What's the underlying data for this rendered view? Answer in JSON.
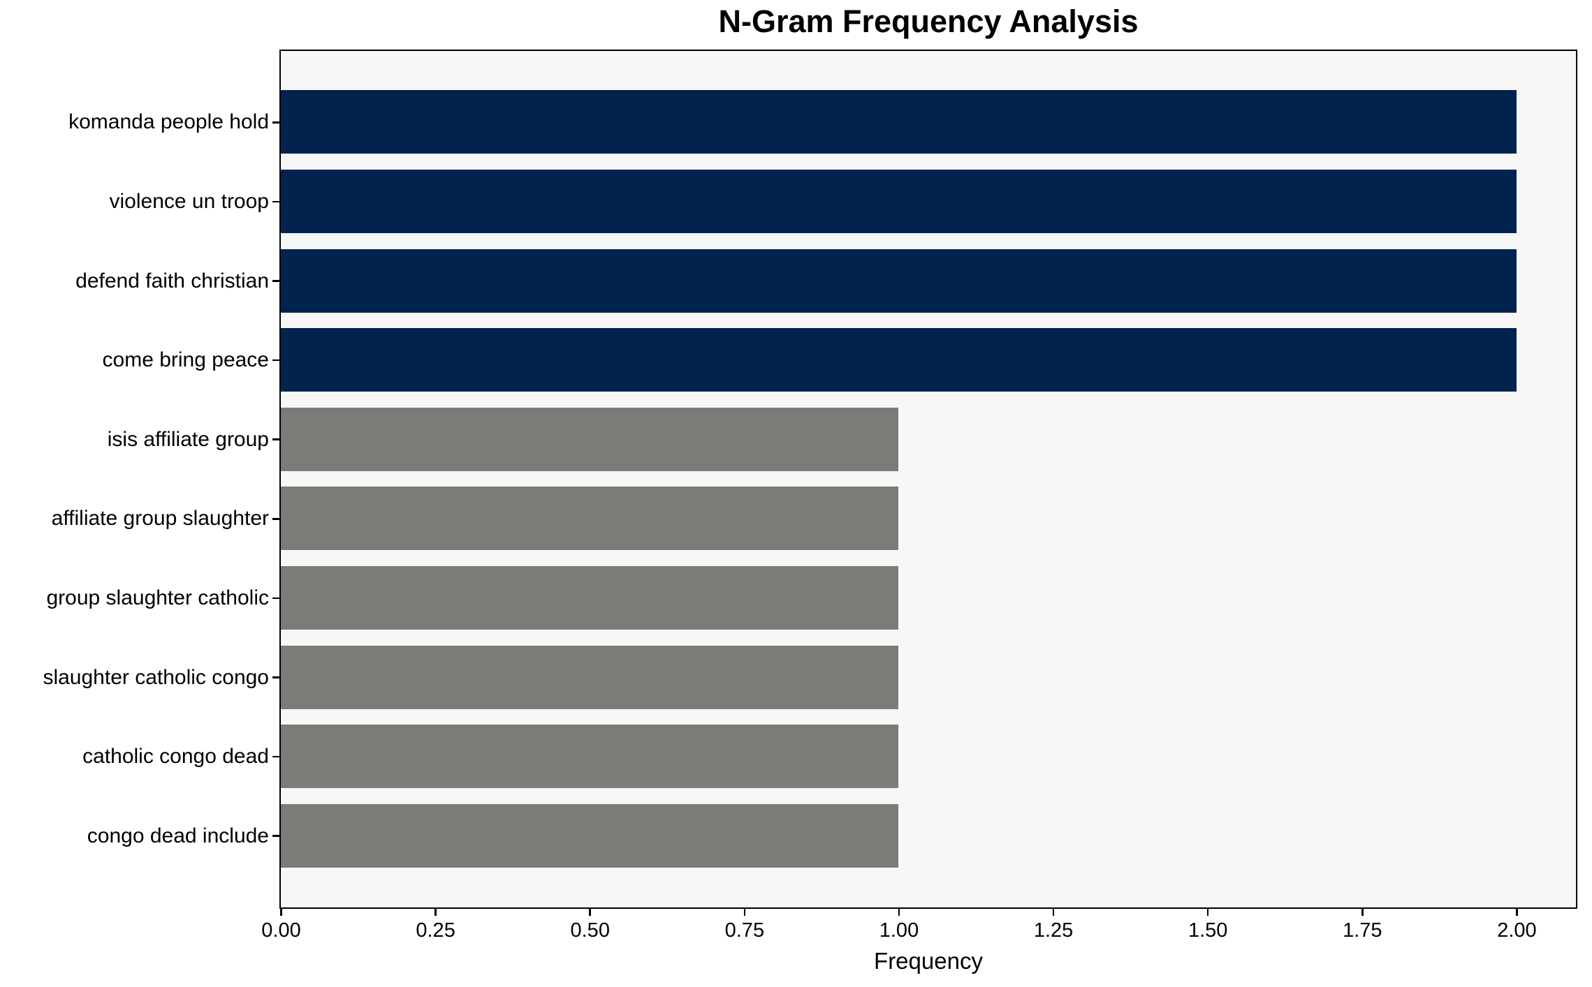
{
  "chart_data": {
    "type": "bar",
    "orientation": "horizontal",
    "title": "N-Gram Frequency Analysis",
    "xlabel": "Frequency",
    "ylabel": "",
    "categories": [
      "komanda people hold",
      "violence un troop",
      "defend faith christian",
      "come bring peace",
      "isis affiliate group",
      "affiliate group slaughter",
      "group slaughter catholic",
      "slaughter catholic congo",
      "catholic congo dead",
      "congo dead include"
    ],
    "values": [
      2,
      2,
      2,
      2,
      1,
      1,
      1,
      1,
      1,
      1
    ],
    "bar_colors": [
      "#02234d",
      "#02234d",
      "#02234d",
      "#02234d",
      "#7b7b78",
      "#7b7b78",
      "#7b7b78",
      "#7b7b78",
      "#7b7b78",
      "#7b7b78"
    ],
    "highlight_color": "#02234d",
    "default_color": "#7b7b78",
    "xlim": [
      0,
      2.095
    ],
    "xtick_labels": [
      "0.00",
      "0.25",
      "0.50",
      "0.75",
      "1.00",
      "1.25",
      "1.50",
      "1.75",
      "2.00"
    ],
    "xtick_values": [
      0,
      0.25,
      0.5,
      0.75,
      1.0,
      1.25,
      1.5,
      1.75,
      2.0
    ],
    "grid": false,
    "legend": null,
    "plot_background": "#f7f7f7",
    "figure_background": "#ffffff"
  }
}
